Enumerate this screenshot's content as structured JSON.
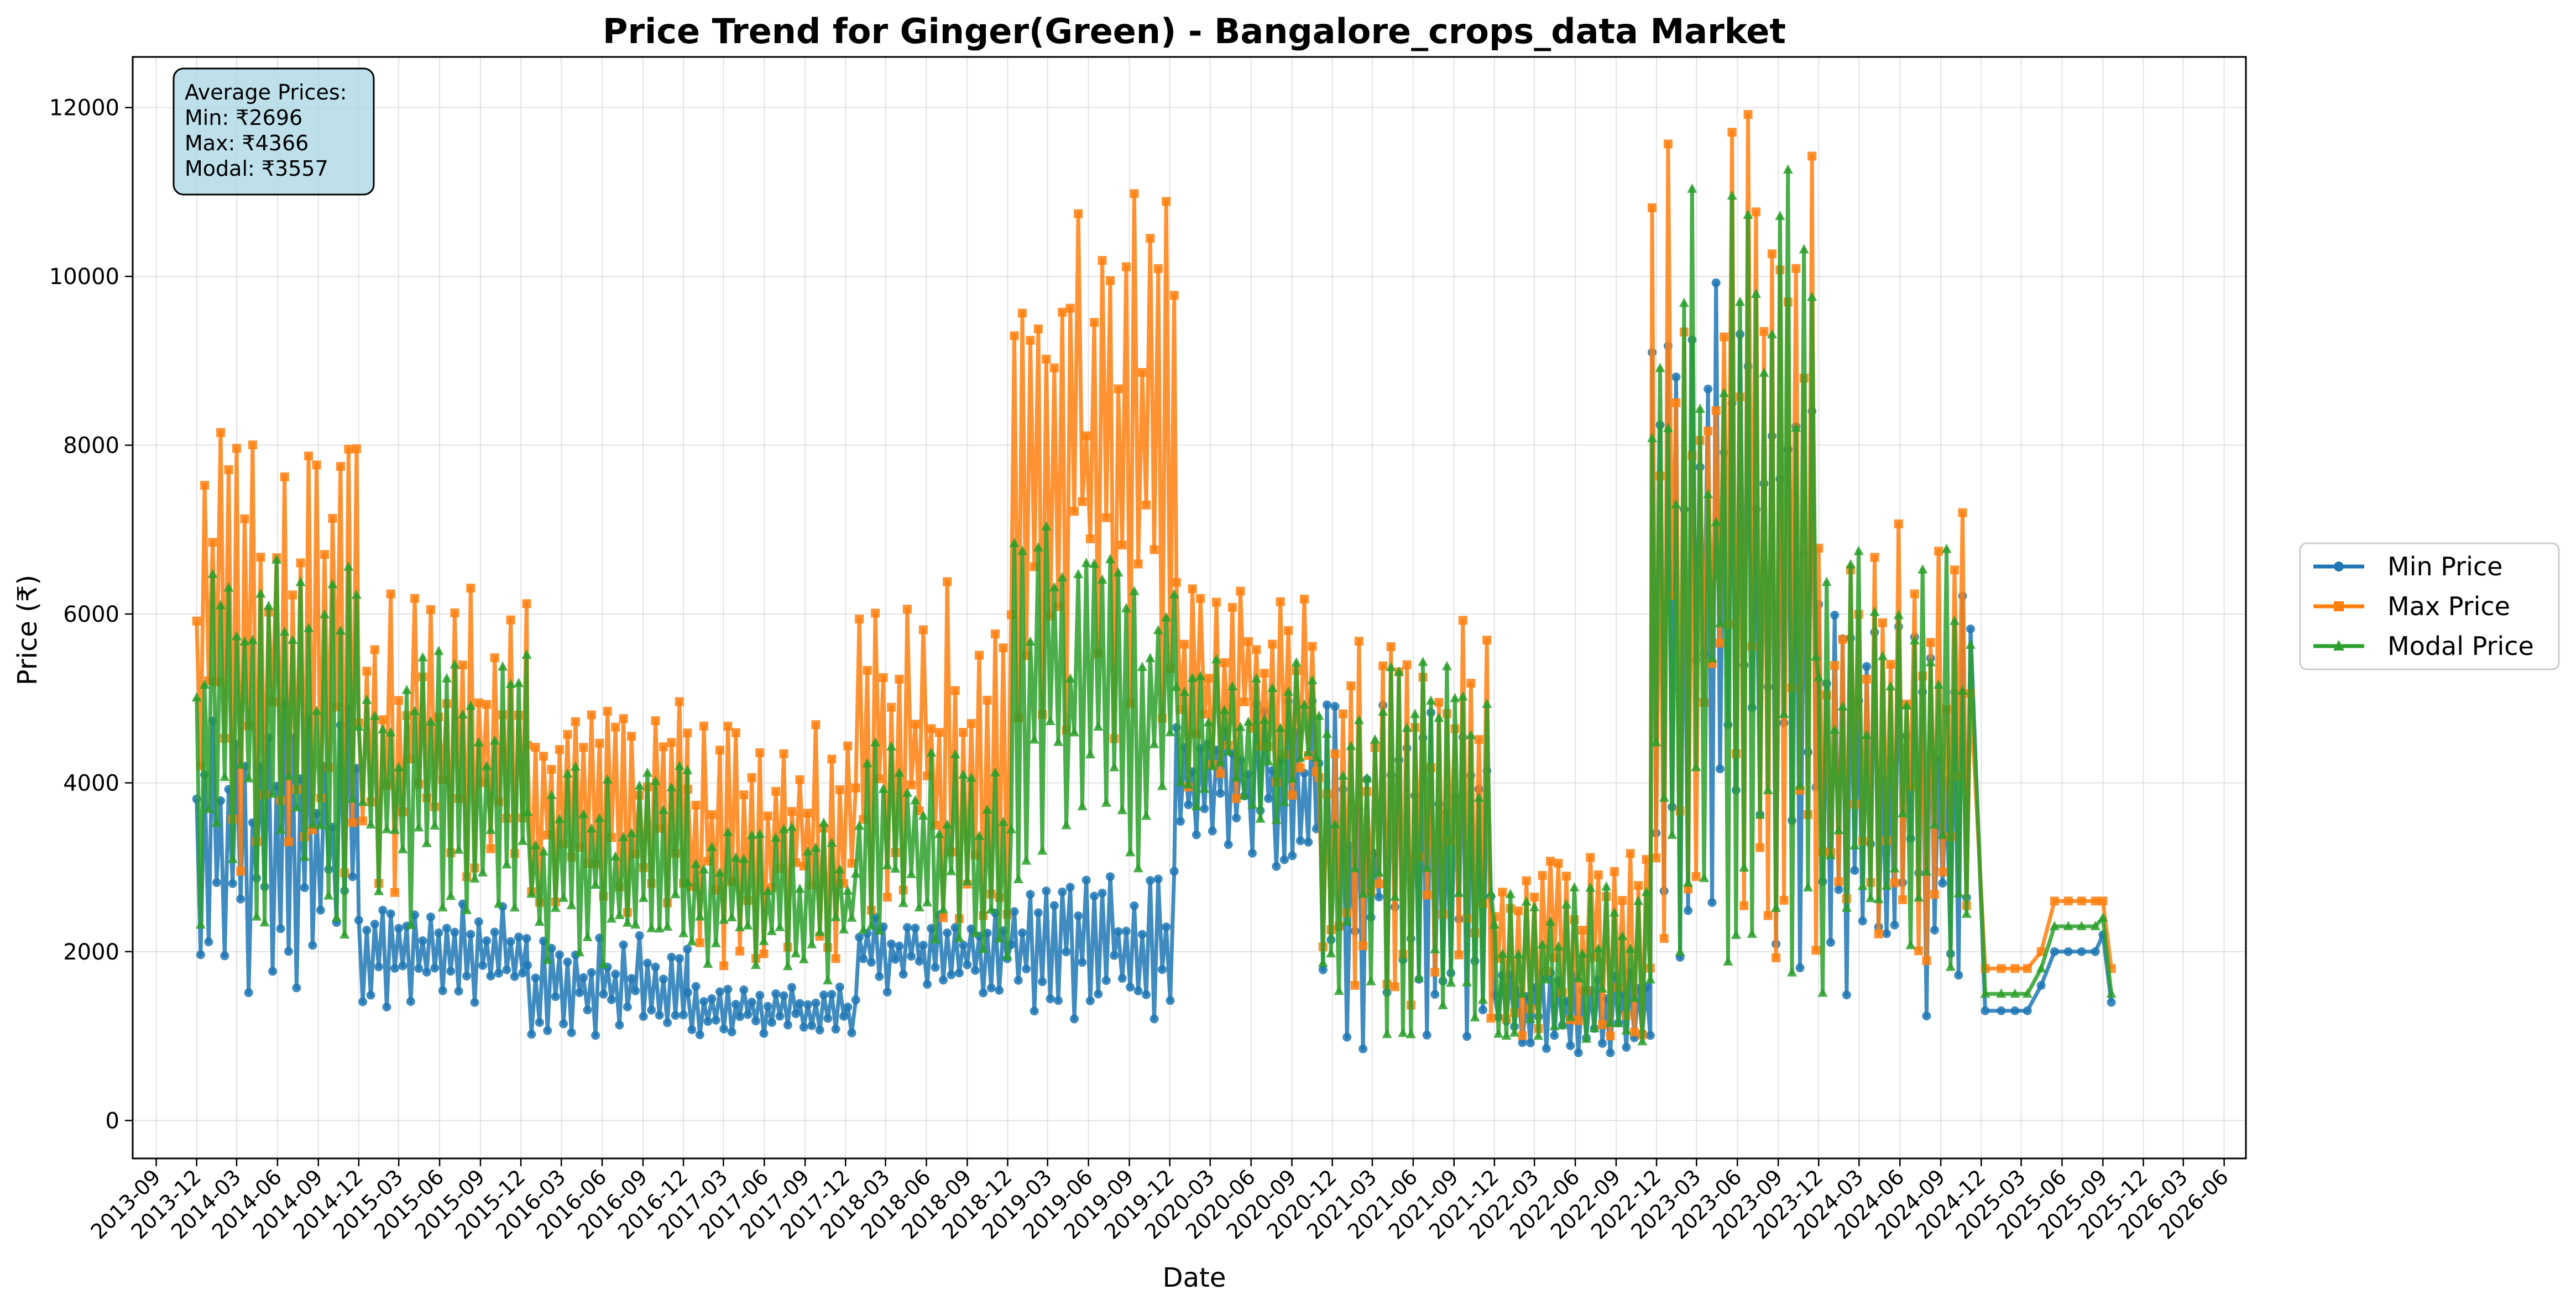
{
  "chart_data": {
    "type": "line",
    "title": "Price Trend for Ginger(Green) - Bangalore_crops_data Market",
    "xlabel": "Date",
    "ylabel": "Price (₹)",
    "ylim": [
      -450,
      12600
    ],
    "yticks": [
      0,
      2000,
      4000,
      6000,
      8000,
      10000,
      12000
    ],
    "xticks": [
      "2013-09",
      "2013-12",
      "2014-03",
      "2014-06",
      "2014-09",
      "2014-12",
      "2015-03",
      "2015-06",
      "2015-09",
      "2015-12",
      "2016-03",
      "2016-06",
      "2016-09",
      "2016-12",
      "2017-03",
      "2017-06",
      "2017-09",
      "2017-12",
      "2018-03",
      "2018-06",
      "2018-09",
      "2018-12",
      "2019-03",
      "2019-06",
      "2019-09",
      "2019-12",
      "2020-03",
      "2020-06",
      "2020-09",
      "2020-12",
      "2021-03",
      "2021-06",
      "2021-09",
      "2021-12",
      "2022-03",
      "2022-06",
      "2022-09",
      "2022-12",
      "2023-03",
      "2023-06",
      "2023-09",
      "2023-12",
      "2024-03",
      "2024-06",
      "2024-09",
      "2024-12",
      "2025-03",
      "2025-06",
      "2025-09",
      "2025-12",
      "2026-03",
      "2026-06"
    ],
    "xlim": [
      "2013-07-10",
      "2026-07-20"
    ],
    "grid": true,
    "legend_position": "outside-right",
    "annotation": {
      "lines": [
        "Average Prices:",
        "Min: ₹2696",
        "Max: ₹4366",
        "Modal: ₹3557"
      ],
      "position": "top-left"
    },
    "series": [
      {
        "name": "Min Price",
        "color": "#1f77b4",
        "marker": "circle"
      },
      {
        "name": "Max Price",
        "color": "#ff7f0e",
        "marker": "square"
      },
      {
        "name": "Modal Price",
        "color": "#2ca02c",
        "marker": "triangle"
      }
    ],
    "segments": [
      {
        "from": "2013-12-01",
        "to": "2014-11-30",
        "min": [
          1500,
          5000
        ],
        "max": [
          2900,
          8200
        ],
        "modal": [
          2200,
          6700
        ]
      },
      {
        "from": "2014-12-01",
        "to": "2015-12-15",
        "min": [
          1300,
          2600
        ],
        "max": [
          2500,
          6500
        ],
        "modal": [
          2300,
          5600
        ]
      },
      {
        "from": "2015-12-16",
        "to": "2016-12-10",
        "min": [
          1000,
          2200
        ],
        "max": [
          2400,
          5000
        ],
        "modal": [
          1800,
          4200
        ]
      },
      {
        "from": "2016-12-11",
        "to": "2017-12-31",
        "min": [
          1000,
          1600
        ],
        "max": [
          1800,
          4700
        ],
        "modal": [
          1600,
          3600
        ]
      },
      {
        "from": "2018-01-01",
        "to": "2018-12-15",
        "min": [
          1500,
          2500
        ],
        "max": [
          2200,
          6500
        ],
        "modal": [
          1900,
          4500
        ]
      },
      {
        "from": "2018-12-16",
        "to": "2019-12-15",
        "min": [
          1200,
          3000
        ],
        "max": [
          4500,
          11000
        ],
        "modal": [
          2800,
          7100
        ]
      },
      {
        "from": "2019-12-16",
        "to": "2020-10-31",
        "min": [
          3000,
          5000
        ],
        "max": [
          3800,
          6400
        ],
        "modal": [
          3500,
          5500
        ]
      },
      {
        "from": "2020-11-01",
        "to": "2021-11-30",
        "min": [
          800,
          5000
        ],
        "max": [
          1200,
          6000
        ],
        "modal": [
          1000,
          5500
        ]
      },
      {
        "from": "2021-12-01",
        "to": "2022-11-20",
        "min": [
          800,
          1800
        ],
        "max": [
          1000,
          3200
        ],
        "modal": [
          900,
          2800
        ]
      },
      {
        "from": "2022-11-21",
        "to": "2023-11-30",
        "min": [
          1400,
          11000
        ],
        "max": [
          1800,
          12000
        ],
        "modal": [
          1600,
          11500
        ]
      },
      {
        "from": "2023-12-01",
        "to": "2024-11-10",
        "min": [
          1000,
          6300
        ],
        "max": [
          1800,
          7300
        ],
        "modal": [
          1500,
          7000
        ]
      }
    ],
    "tail_points": {
      "dates": [
        "2024-12-10",
        "2025-01-15",
        "2025-02-15",
        "2025-03-15",
        "2025-04-15",
        "2025-05-15",
        "2025-06-15",
        "2025-07-15",
        "2025-08-15",
        "2025-09-01",
        "2025-09-20"
      ],
      "min": [
        1300,
        1300,
        1300,
        1300,
        1600,
        2000,
        2000,
        2000,
        2000,
        2200,
        1400
      ],
      "max": [
        1800,
        1800,
        1800,
        1800,
        2000,
        2600,
        2600,
        2600,
        2600,
        2600,
        1800
      ],
      "modal": [
        1500,
        1500,
        1500,
        1500,
        1800,
        2300,
        2300,
        2300,
        2300,
        2400,
        1500
      ]
    }
  }
}
